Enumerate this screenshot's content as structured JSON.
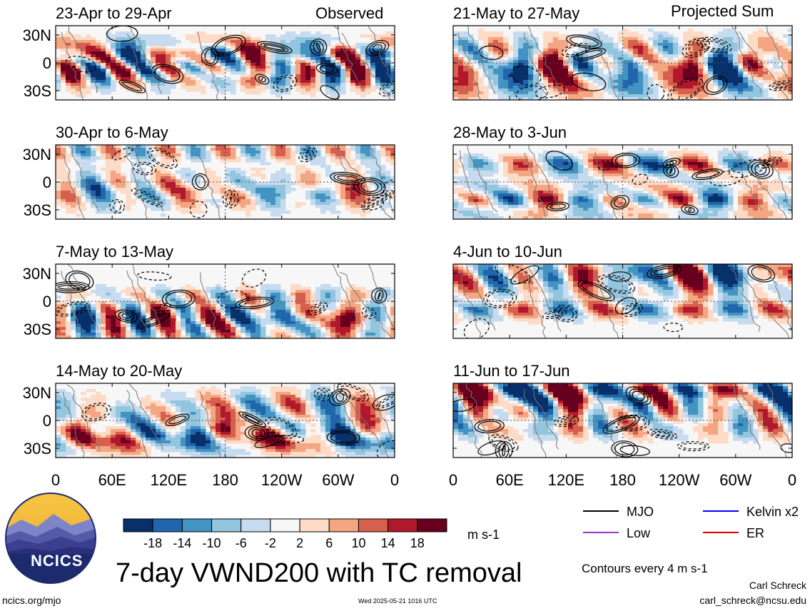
{
  "title": "7-day VWND200 with TC removal",
  "columns": {
    "left": "Observed",
    "right": "Projected Sum"
  },
  "chart_data": {
    "type": "heatmap",
    "variable": "VWND200",
    "units": "m s-1",
    "contour_interval_note": "Contours every 4 m s-1",
    "xaxis": {
      "ticks": [
        "0",
        "60E",
        "120E",
        "180",
        "120W",
        "60W",
        "0"
      ],
      "range": [
        0,
        360
      ]
    },
    "yaxis": {
      "ticks": [
        "30N",
        "0",
        "30S"
      ],
      "range": [
        -40,
        40
      ]
    },
    "panels": [
      {
        "title": "23-Apr to 29-Apr",
        "column": "Observed"
      },
      {
        "title": "30-Apr to 6-May",
        "column": "Observed"
      },
      {
        "title": "7-May to 13-May",
        "column": "Observed"
      },
      {
        "title": "14-May to 20-May",
        "column": "Observed"
      },
      {
        "title": "21-May to 27-May",
        "column": "Projected Sum"
      },
      {
        "title": "28-May to 3-Jun",
        "column": "Projected Sum"
      },
      {
        "title": "4-Jun to 10-Jun",
        "column": "Projected Sum"
      },
      {
        "title": "11-Jun to 17-Jun",
        "column": "Projected Sum"
      }
    ],
    "colorbar": {
      "labels": [
        "-18",
        "-14",
        "-10",
        "-6",
        "-2",
        "2",
        "6",
        "10",
        "14",
        "18"
      ],
      "colors": [
        "#08306b",
        "#2166ac",
        "#4393c3",
        "#92c5de",
        "#c6dbef",
        "#f7f7f7",
        "#fddbc7",
        "#f4a582",
        "#d6604d",
        "#b2182b",
        "#67001f"
      ]
    },
    "legend": [
      {
        "name": "MJO",
        "color": "#000000"
      },
      {
        "name": "Kelvin x2",
        "color": "#0000ff"
      },
      {
        "name": "Low",
        "color": "#9933cc"
      },
      {
        "name": "ER",
        "color": "#e00000"
      }
    ]
  },
  "logo": {
    "text": "NCICS"
  },
  "footer": {
    "url": "ncics.org/mjo",
    "timestamp": "Wed 2025-05-21 1016 UTC",
    "author": "Carl Schreck",
    "email": "carl_schreck@ncsu.edu"
  }
}
